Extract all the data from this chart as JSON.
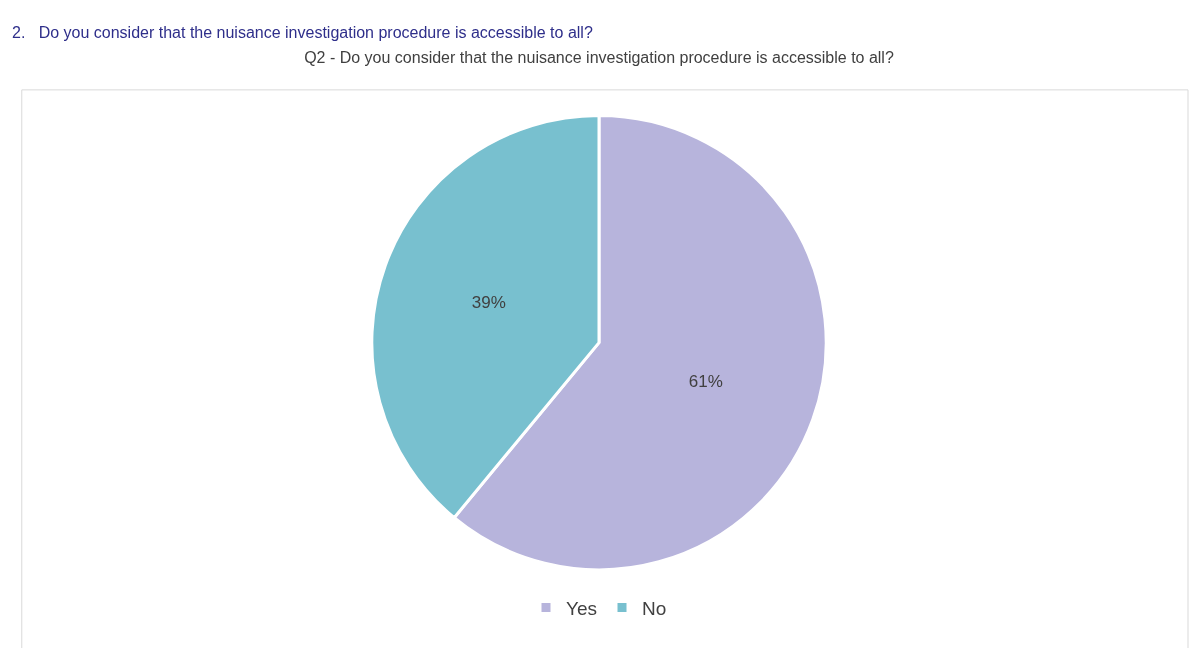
{
  "chart_data": {
    "type": "pie",
    "title": "Q2 - Do you consider that the nuisance investigation procedure is accessible to all?",
    "annotations": [
      "2.   Do you consider that the nuisance investigation procedure is accessible to all?"
    ],
    "categories": [
      "Yes",
      "No"
    ],
    "values": [
      61,
      39
    ],
    "colors": [
      "#b7b4dc",
      "#78c0cf"
    ],
    "value_labels": [
      "61%",
      "39%"
    ],
    "legend": "bottom"
  }
}
